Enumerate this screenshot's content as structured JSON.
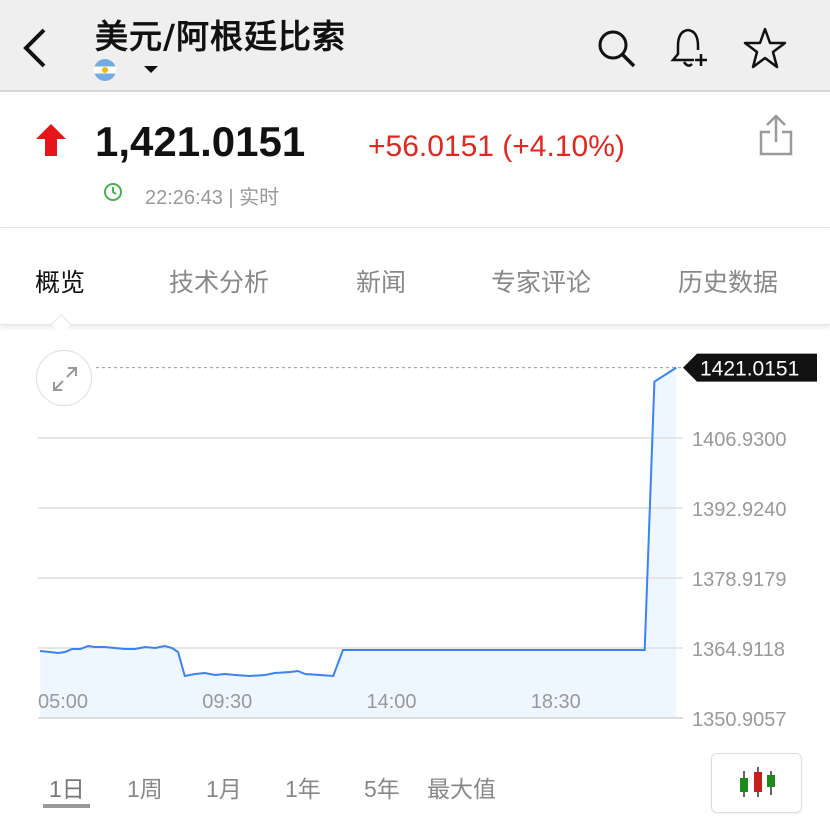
{
  "header": {
    "title": "美元/阿根廷比索",
    "back_icon": "chevron-left-icon",
    "flag": "argentina-flag",
    "icons": [
      "search-icon",
      "bell-plus-icon",
      "star-icon"
    ]
  },
  "quote": {
    "direction": "up",
    "price": "1,421.0151",
    "change": "+56.0151 (+4.10%)",
    "time": "22:26:43 | 实时",
    "up_color": "#e0281e",
    "clock_color": "#4caf50"
  },
  "tabs": [
    {
      "label": "概览",
      "active": true
    },
    {
      "label": "技术分析"
    },
    {
      "label": "新闻"
    },
    {
      "label": "专家评论"
    },
    {
      "label": "历史数据"
    }
  ],
  "chart_data": {
    "type": "area",
    "line_color": "#3b82f6",
    "fill_color": "#eef6ff",
    "current_value_label": "1421.0151",
    "y_ticks": [
      "1406.9300",
      "1392.9240",
      "1378.9179",
      "1364.9118",
      "1350.9057"
    ],
    "y_tick_values": [
      1406.93,
      1392.924,
      1378.9179,
      1364.9118,
      1350.9057
    ],
    "ylim": [
      1350.9057,
      1421.0151
    ],
    "x_ticks": [
      "05:00",
      "09:30",
      "14:00",
      "18:30"
    ],
    "grid": "horizontal",
    "points": [
      [
        "05:00",
        1364.31
      ],
      [
        "05:16",
        1364.11
      ],
      [
        "05:30",
        1363.91
      ],
      [
        "05:41",
        1364.11
      ],
      [
        "05:53",
        1364.71
      ],
      [
        "06:06",
        1364.71
      ],
      [
        "06:19",
        1365.31
      ],
      [
        "06:30",
        1365.11
      ],
      [
        "06:47",
        1365.11
      ],
      [
        "07:03",
        1364.91
      ],
      [
        "07:20",
        1364.71
      ],
      [
        "07:36",
        1364.71
      ],
      [
        "07:53",
        1365.11
      ],
      [
        "08:09",
        1364.91
      ],
      [
        "08:25",
        1365.31
      ],
      [
        "08:37",
        1364.91
      ],
      [
        "08:47",
        1364.11
      ],
      [
        "08:58",
        1359.31
      ],
      [
        "09:15",
        1359.71
      ],
      [
        "09:31",
        1359.91
      ],
      [
        "09:48",
        1359.51
      ],
      [
        "10:04",
        1359.71
      ],
      [
        "10:21",
        1359.51
      ],
      [
        "10:45",
        1359.31
      ],
      [
        "11:10",
        1359.51
      ],
      [
        "11:26",
        1359.91
      ],
      [
        "11:51",
        1360.11
      ],
      [
        "12:04",
        1360.31
      ],
      [
        "12:16",
        1359.71
      ],
      [
        "12:40",
        1359.51
      ],
      [
        "13:02",
        1359.31
      ],
      [
        "13:18",
        1364.51
      ],
      [
        "14:52",
        1364.51
      ],
      [
        "17:36",
        1364.51
      ],
      [
        "20:21",
        1364.51
      ],
      [
        "21:34",
        1364.51
      ],
      [
        "21:50",
        1418.21
      ],
      [
        "22:26",
        1421.0151
      ]
    ]
  },
  "ranges": [
    {
      "label": "1日",
      "active": true
    },
    {
      "label": "1周"
    },
    {
      "label": "1月"
    },
    {
      "label": "1年"
    },
    {
      "label": "5年"
    },
    {
      "label": "最大值"
    }
  ],
  "candle_button": "candlestick-icon"
}
